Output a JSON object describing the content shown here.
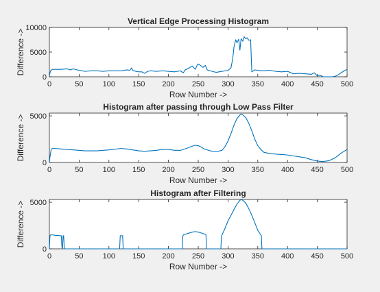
{
  "figure": {
    "background": "#f0f0f0",
    "line_color": "#0072bd",
    "axes_color": "#262626"
  },
  "chart_data": [
    {
      "type": "line",
      "title": "Vertical Edge Processing Histogram",
      "xlabel": "Row Number ->",
      "ylabel": "Difference ->",
      "xlim": [
        0,
        500
      ],
      "ylim": [
        0,
        10000
      ],
      "xticks": [
        0,
        50,
        100,
        150,
        200,
        250,
        300,
        350,
        400,
        450,
        500
      ],
      "yticks": [
        0,
        5000,
        10000
      ],
      "grid": false,
      "series": [
        {
          "color": "#0072bd",
          "x": [
            0,
            2,
            5,
            10,
            20,
            30,
            35,
            40,
            50,
            60,
            70,
            80,
            90,
            100,
            110,
            120,
            130,
            135,
            138,
            140,
            145,
            150,
            155,
            160,
            165,
            170,
            180,
            190,
            200,
            210,
            220,
            225,
            228,
            230,
            235,
            240,
            245,
            248,
            250,
            255,
            258,
            262,
            265,
            270,
            280,
            290,
            295,
            300,
            305,
            308,
            310,
            313,
            315,
            318,
            320,
            322,
            325,
            327,
            330,
            332,
            335,
            338,
            340,
            345,
            350,
            360,
            370,
            380,
            390,
            400,
            410,
            420,
            430,
            440,
            445,
            450,
            455,
            460,
            465,
            470,
            475,
            480,
            485,
            490,
            495,
            500
          ],
          "y": [
            300,
            1200,
            1500,
            1500,
            1500,
            1600,
            1400,
            1600,
            1300,
            1100,
            1200,
            1200,
            1100,
            1200,
            1200,
            1200,
            1400,
            1300,
            1800,
            1300,
            1100,
            1000,
            1000,
            700,
            1100,
            1200,
            1100,
            1200,
            1100,
            1000,
            1200,
            800,
            1400,
            1500,
            1800,
            2200,
            1500,
            2300,
            2600,
            2200,
            1900,
            2300,
            1400,
            1200,
            900,
            1100,
            1200,
            1300,
            1800,
            3700,
            6000,
            7500,
            6900,
            7600,
            5400,
            7700,
            7200,
            8100,
            7700,
            7900,
            7400,
            7500,
            1000,
            1400,
            1300,
            1200,
            1300,
            1100,
            1000,
            1100,
            600,
            700,
            600,
            500,
            800,
            200,
            300,
            0,
            0,
            0,
            0,
            100,
            400,
            800,
            1200,
            1500
          ]
        }
      ]
    },
    {
      "type": "line",
      "title": "Histogram after passing through Low Pass Filter",
      "xlabel": "Row Number ->",
      "ylabel": "Difference ->",
      "xlim": [
        0,
        500
      ],
      "ylim": [
        0,
        5300
      ],
      "xticks": [
        0,
        50,
        100,
        150,
        200,
        250,
        300,
        350,
        400,
        450,
        500
      ],
      "yticks": [
        0,
        5000
      ],
      "grid": false,
      "series": [
        {
          "color": "#0072bd",
          "x": [
            0,
            1,
            3,
            5,
            10,
            20,
            40,
            60,
            80,
            100,
            120,
            130,
            140,
            150,
            160,
            170,
            180,
            190,
            200,
            210,
            220,
            230,
            240,
            245,
            250,
            255,
            260,
            270,
            280,
            290,
            295,
            300,
            305,
            310,
            315,
            320,
            322,
            325,
            330,
            335,
            340,
            345,
            350,
            355,
            360,
            370,
            380,
            390,
            400,
            410,
            420,
            430,
            440,
            450,
            460,
            470,
            480,
            490,
            500
          ],
          "y": [
            0,
            600,
            1400,
            1500,
            1500,
            1450,
            1350,
            1250,
            1250,
            1350,
            1500,
            1450,
            1350,
            1250,
            1200,
            1250,
            1300,
            1400,
            1400,
            1300,
            1300,
            1500,
            1750,
            1850,
            1800,
            1650,
            1450,
            1250,
            1150,
            1300,
            1700,
            2300,
            3100,
            4000,
            4700,
            5100,
            5200,
            5100,
            4800,
            4200,
            3400,
            2500,
            1800,
            1400,
            1100,
            950,
            900,
            850,
            800,
            700,
            600,
            500,
            300,
            150,
            100,
            200,
            500,
            1000,
            1400
          ]
        }
      ]
    },
    {
      "type": "line",
      "title": "Histogram after Filtering",
      "xlabel": "Row Number ->",
      "ylabel": "Difference ->",
      "xlim": [
        0,
        500
      ],
      "ylim": [
        0,
        5300
      ],
      "xticks": [
        0,
        50,
        100,
        150,
        200,
        250,
        300,
        350,
        400,
        450,
        500
      ],
      "yticks": [
        0,
        5000
      ],
      "grid": false,
      "series": [
        {
          "color": "#0072bd",
          "x": [
            0,
            1,
            2,
            5,
            10,
            20,
            21,
            22,
            23,
            24,
            25,
            118,
            119,
            120,
            122,
            123,
            124,
            223,
            224,
            225,
            230,
            240,
            245,
            250,
            255,
            260,
            263,
            264,
            288,
            289,
            290,
            295,
            300,
            305,
            310,
            315,
            320,
            322,
            325,
            330,
            335,
            340,
            345,
            350,
            355,
            356,
            357,
            500
          ],
          "y": [
            0,
            1400,
            1500,
            1500,
            1450,
            1400,
            200,
            0,
            1400,
            1400,
            0,
            0,
            1400,
            1400,
            1400,
            1400,
            0,
            0,
            1300,
            1500,
            1600,
            1800,
            1850,
            1800,
            1700,
            1600,
            1500,
            0,
            0,
            1300,
            1500,
            2200,
            3000,
            3600,
            4200,
            4800,
            5200,
            5300,
            5200,
            4900,
            4300,
            3600,
            2800,
            2000,
            1500,
            1400,
            0,
            0
          ]
        }
      ]
    }
  ]
}
